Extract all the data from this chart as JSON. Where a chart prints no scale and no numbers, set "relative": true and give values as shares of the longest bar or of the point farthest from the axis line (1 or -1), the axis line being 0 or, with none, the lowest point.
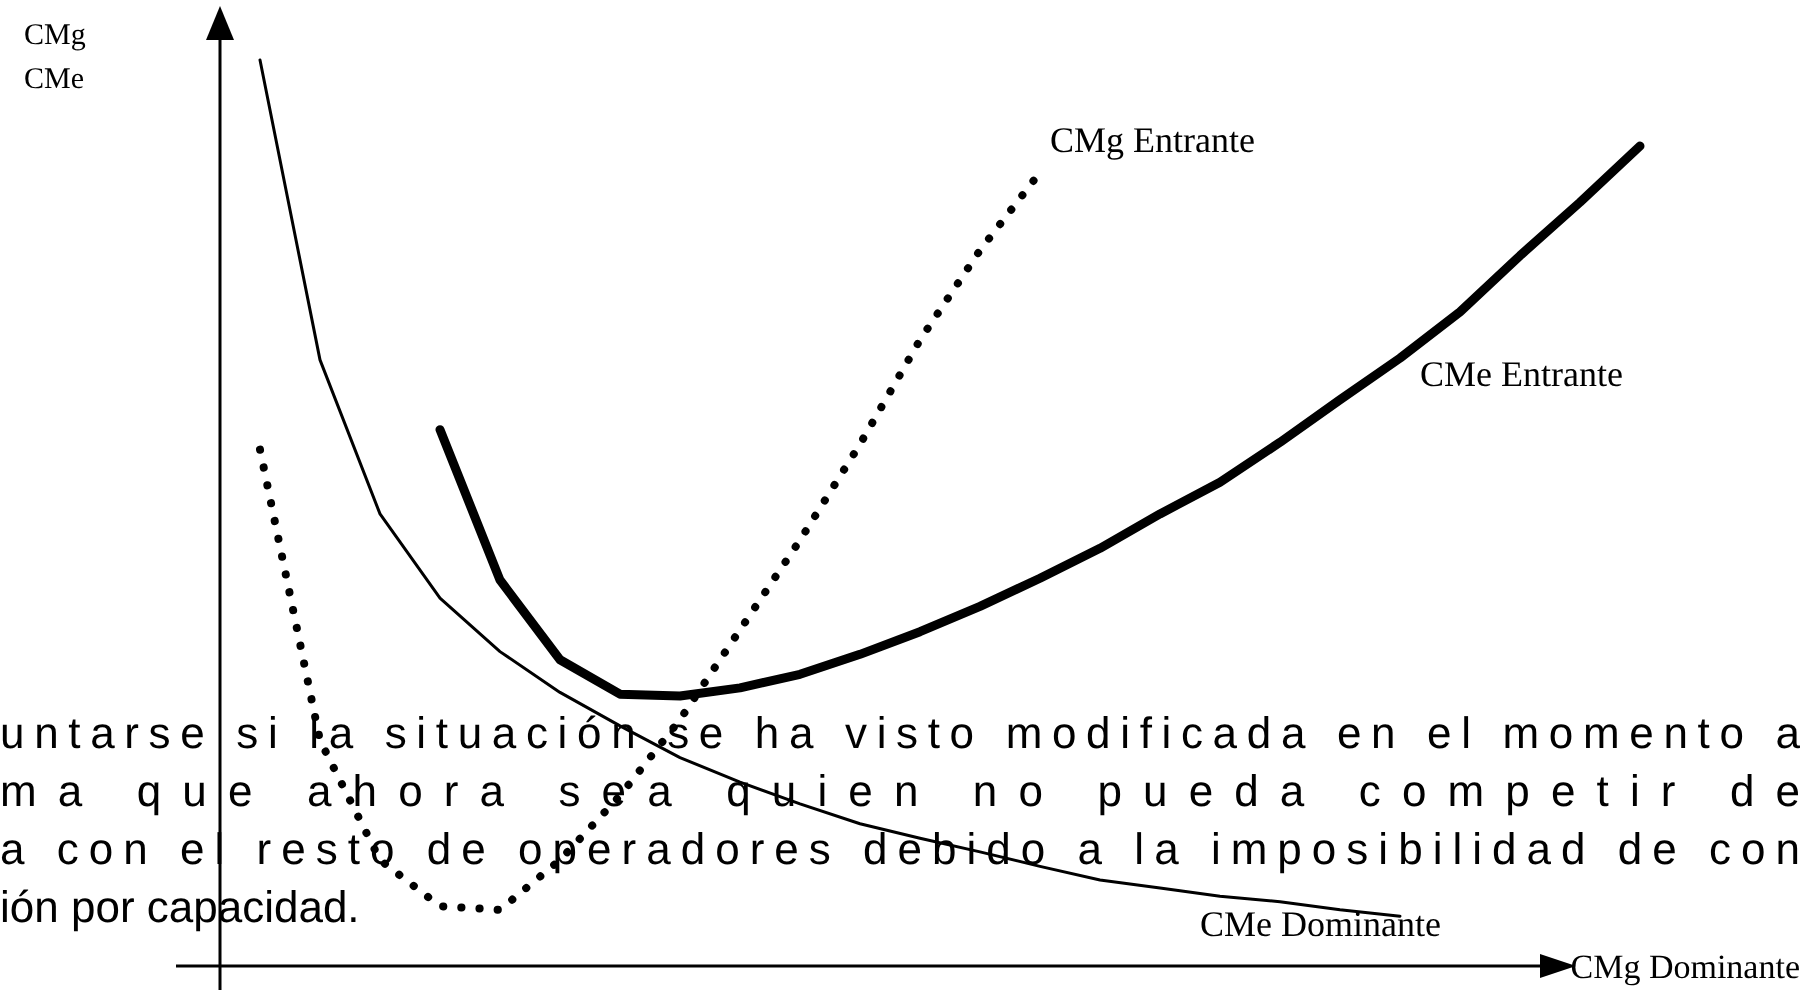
{
  "chart_data": {
    "type": "line",
    "relative": true,
    "ylabel": "CMg\nCMe",
    "categories": [
      null,
      null,
      null,
      null,
      null,
      null,
      null,
      null,
      null,
      null,
      null,
      null,
      null,
      null,
      null,
      null,
      null,
      null,
      null,
      null,
      null,
      null,
      null,
      null
    ],
    "series": [
      {
        "name": "CMe Dominante",
        "color": "#000000",
        "line_style": "solid",
        "values": [
          1.0,
          0.669,
          0.499,
          0.406,
          0.347,
          0.302,
          0.265,
          0.23,
          0.203,
          0.179,
          0.157,
          0.141,
          0.126,
          0.11,
          0.095,
          0.086,
          0.077,
          0.071,
          0.062,
          0.055,
          null,
          null,
          null,
          null
        ]
      },
      {
        "name": "CMe Entrante",
        "color": "#000000",
        "line_style": "solid",
        "values": [
          null,
          null,
          null,
          0.592,
          0.426,
          0.338,
          0.3,
          0.298,
          0.307,
          0.322,
          0.344,
          0.369,
          0.397,
          0.428,
          0.461,
          0.499,
          0.534,
          0.578,
          0.625,
          0.671,
          0.722,
          0.784,
          0.843,
          0.905
        ]
      },
      {
        "name": "CMg Entrante",
        "color": "#000000",
        "line_style": "dotted",
        "values": [
          0.57,
          0.249,
          0.117,
          0.066,
          0.062,
          0.117,
          0.188,
          0.272,
          0.371,
          0.47,
          0.576,
          0.691,
          0.79,
          0.876,
          null,
          null,
          null,
          null,
          null,
          null,
          null,
          null,
          null,
          null
        ]
      }
    ],
    "annotations": [
      "CMg Dominante",
      "untarse si la situación se ha visto modificada en el momento a",
      "ma que ahora sea quien no pueda competir de",
      "a con el resto de operadores debido a la imposibilidad de con",
      "ión por capacidad."
    ]
  }
}
